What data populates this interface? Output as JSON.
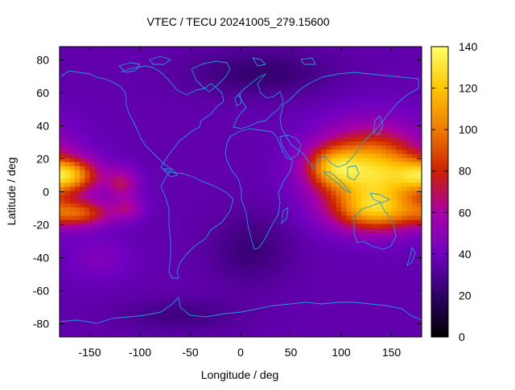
{
  "chart_data": {
    "type": "heatmap",
    "title": "VTEC / TECU 20241005_279.15600",
    "xlabel": "Longitude / deg",
    "ylabel": "Latitude / deg",
    "xlim": [
      -180,
      180
    ],
    "ylim": [
      -88,
      88
    ],
    "x_ticks": [
      {
        "value": -150,
        "label": "-150"
      },
      {
        "value": -100,
        "label": "-100"
      },
      {
        "value": -50,
        "label": "-50"
      },
      {
        "value": 0,
        "label": "0"
      },
      {
        "value": 50,
        "label": "50"
      },
      {
        "value": 100,
        "label": "100"
      },
      {
        "value": 150,
        "label": "150"
      }
    ],
    "y_ticks": [
      {
        "value": 80,
        "label": "80"
      },
      {
        "value": 60,
        "label": "60"
      },
      {
        "value": 40,
        "label": "40"
      },
      {
        "value": 20,
        "label": "20"
      },
      {
        "value": 0,
        "label": "0"
      },
      {
        "value": -20,
        "label": "-20"
      },
      {
        "value": -40,
        "label": "-40"
      },
      {
        "value": -60,
        "label": "-60"
      },
      {
        "value": -80,
        "label": "-80"
      }
    ],
    "colorbar": {
      "min": 0,
      "max": 140,
      "ticks": [
        {
          "value": 0,
          "label": "0"
        },
        {
          "value": 20,
          "label": "20"
        },
        {
          "value": 40,
          "label": "40"
        },
        {
          "value": 60,
          "label": "60"
        },
        {
          "value": 80,
          "label": "80"
        },
        {
          "value": 100,
          "label": "100"
        },
        {
          "value": 120,
          "label": "120"
        },
        {
          "value": 140,
          "label": "140"
        }
      ],
      "palette": [
        "#000000",
        "#2e0066",
        "#6f00c0",
        "#a800a8",
        "#cc2000",
        "#ee7a00",
        "#ffc400",
        "#ffff66"
      ]
    },
    "grid": {
      "lon_step": 5,
      "lat_step": 2.5,
      "background_tecu": 36,
      "features": [
        {
          "name": "asia-pacific-crest",
          "lon": 130,
          "lat": 12,
          "lon_width": 50,
          "lat_width": 24,
          "tecu": 90
        },
        {
          "name": "indian-ocean-crest",
          "lon": 90,
          "lat": 15,
          "lon_width": 25,
          "lat_width": 12,
          "tecu": 45
        },
        {
          "name": "south-pacific-crest",
          "lon": 135,
          "lat": -12,
          "lon_width": 42,
          "lat_width": 12,
          "tecu": 55
        },
        {
          "name": "east-pacific-north-crest",
          "lon": -172,
          "lat": 10,
          "lon_width": 30,
          "lat_width": 10,
          "tecu": 70
        },
        {
          "name": "east-pacific-north-tail",
          "lon": -118,
          "lat": 5,
          "lon_width": 16,
          "lat_width": 9,
          "tecu": 30
        },
        {
          "name": "east-pacific-south-crest",
          "lon": -160,
          "lat": -13,
          "lon_width": 32,
          "lat_width": 8,
          "tecu": 50
        },
        {
          "name": "east-pacific-south-tail",
          "lon": -112,
          "lat": -10,
          "lon_width": 15,
          "lat_width": 7,
          "tecu": 22
        },
        {
          "name": "southeast-pacific-bump",
          "lon": -140,
          "lat": -40,
          "lon_width": 30,
          "lat_width": 12,
          "tecu": 10
        },
        {
          "name": "arctic-depletion",
          "lon": 20,
          "lat": 72,
          "lon_width": 70,
          "lat_width": 14,
          "tecu": -14
        },
        {
          "name": "atlantic-depletion",
          "lon": 10,
          "lat": -35,
          "lon_width": 40,
          "lat_width": 22,
          "tecu": -12
        },
        {
          "name": "south-polar-depletion",
          "lon": -60,
          "lat": -75,
          "lon_width": 60,
          "lat_width": 10,
          "tecu": -10
        }
      ]
    },
    "coastline_color": "#1e9bd7"
  }
}
